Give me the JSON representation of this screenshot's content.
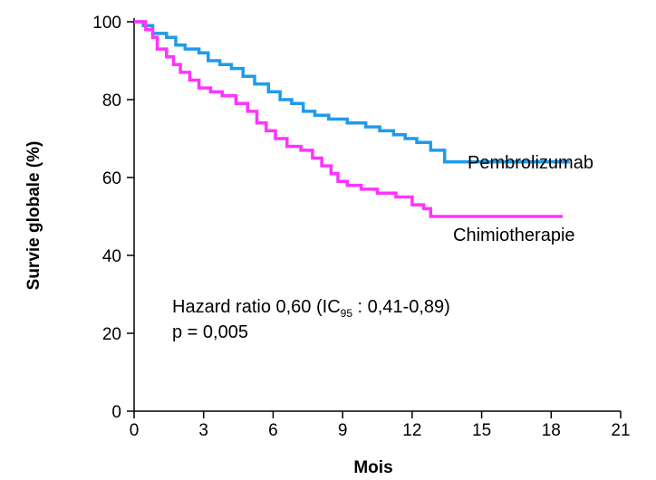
{
  "chart_data": {
    "type": "line",
    "title": "",
    "xlabel": "Mois",
    "ylabel": "Survie globale (%)",
    "xlim": [
      0,
      21
    ],
    "ylim": [
      0,
      100
    ],
    "xticks": [
      0,
      3,
      6,
      9,
      12,
      15,
      18,
      21
    ],
    "yticks": [
      0,
      20,
      40,
      60,
      80,
      100
    ],
    "grid": false,
    "series": [
      {
        "name": "Pembrolizumab",
        "color": "#1f9bea",
        "points": [
          [
            0,
            100
          ],
          [
            0.4,
            99
          ],
          [
            0.8,
            97
          ],
          [
            1.4,
            96
          ],
          [
            1.8,
            94
          ],
          [
            2.2,
            93
          ],
          [
            2.8,
            92
          ],
          [
            3.2,
            90
          ],
          [
            3.7,
            89
          ],
          [
            4.2,
            88
          ],
          [
            4.7,
            86
          ],
          [
            5.2,
            84
          ],
          [
            5.8,
            82
          ],
          [
            6.3,
            80
          ],
          [
            6.8,
            79
          ],
          [
            7.3,
            77
          ],
          [
            7.8,
            76
          ],
          [
            8.4,
            75
          ],
          [
            9.2,
            74
          ],
          [
            10.0,
            73
          ],
          [
            10.6,
            72
          ],
          [
            11.2,
            71
          ],
          [
            11.7,
            70
          ],
          [
            12.2,
            69
          ],
          [
            12.8,
            67
          ],
          [
            13.4,
            64
          ],
          [
            18.8,
            64
          ]
        ]
      },
      {
        "name": "Chimiotherapie",
        "color": "#ff33ff",
        "points": [
          [
            0,
            100
          ],
          [
            0.5,
            98
          ],
          [
            0.8,
            96
          ],
          [
            1.0,
            93
          ],
          [
            1.4,
            91
          ],
          [
            1.7,
            89
          ],
          [
            2.0,
            87
          ],
          [
            2.4,
            85
          ],
          [
            2.8,
            83
          ],
          [
            3.3,
            82
          ],
          [
            3.8,
            81
          ],
          [
            4.4,
            79
          ],
          [
            4.9,
            77
          ],
          [
            5.3,
            74
          ],
          [
            5.7,
            72
          ],
          [
            6.1,
            70
          ],
          [
            6.6,
            68
          ],
          [
            7.2,
            67
          ],
          [
            7.7,
            65
          ],
          [
            8.1,
            63
          ],
          [
            8.5,
            61
          ],
          [
            8.8,
            59
          ],
          [
            9.2,
            58
          ],
          [
            9.8,
            57
          ],
          [
            10.5,
            56
          ],
          [
            11.3,
            55
          ],
          [
            12.0,
            53
          ],
          [
            12.5,
            52
          ],
          [
            12.8,
            50
          ],
          [
            18.5,
            50
          ]
        ]
      }
    ],
    "annotations": {
      "line1_prefix": "Hazard ratio 0,60 (IC",
      "line1_subscript": "95",
      "line1_suffix": " : 0,41-0,89)",
      "line2": "p = 0,005"
    }
  }
}
